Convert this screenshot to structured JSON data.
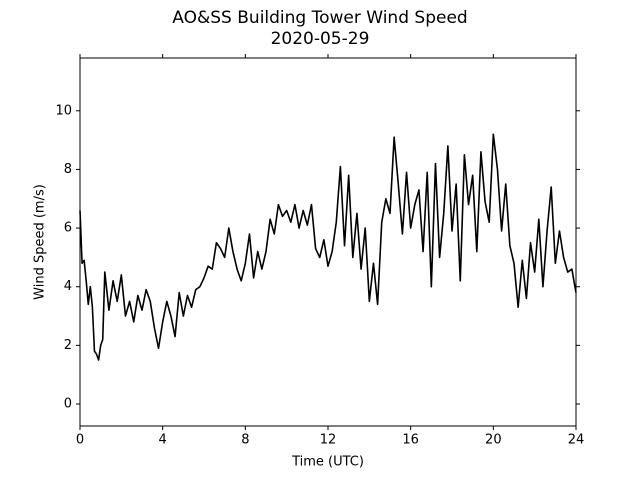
{
  "chart_data": {
    "type": "line",
    "title": "AO&SS Building Tower Wind Speed",
    "subtitle": "2020-05-29",
    "xlabel": "Time (UTC)",
    "ylabel": "Wind Speed (m/s)",
    "xlim": [
      0,
      24
    ],
    "xticks": [
      0,
      4,
      8,
      12,
      16,
      20,
      24
    ],
    "ylim": [
      -0.75,
      11.8
    ],
    "yticks": [
      0,
      2,
      4,
      6,
      8,
      10
    ],
    "grid": false,
    "series": [
      {
        "color": "#000000",
        "x": [
          0,
          0.1,
          0.2,
          0.3,
          0.4,
          0.5,
          0.6,
          0.7,
          0.8,
          0.9,
          1.0,
          1.1,
          1.2,
          1.4,
          1.6,
          1.8,
          2.0,
          2.2,
          2.4,
          2.6,
          2.8,
          3.0,
          3.2,
          3.4,
          3.6,
          3.8,
          4.0,
          4.2,
          4.4,
          4.6,
          4.8,
          5.0,
          5.2,
          5.4,
          5.6,
          5.8,
          6.0,
          6.2,
          6.4,
          6.6,
          6.8,
          7.0,
          7.2,
          7.4,
          7.6,
          7.8,
          8.0,
          8.2,
          8.4,
          8.6,
          8.8,
          9.0,
          9.2,
          9.4,
          9.6,
          9.8,
          10.0,
          10.2,
          10.4,
          10.6,
          10.8,
          11.0,
          11.2,
          11.4,
          11.6,
          11.8,
          12.0,
          12.2,
          12.4,
          12.6,
          12.8,
          13.0,
          13.2,
          13.4,
          13.6,
          13.8,
          14.0,
          14.2,
          14.4,
          14.6,
          14.8,
          15.0,
          15.2,
          15.4,
          15.6,
          15.8,
          16.0,
          16.2,
          16.4,
          16.6,
          16.8,
          17.0,
          17.2,
          17.4,
          17.6,
          17.8,
          18.0,
          18.2,
          18.4,
          18.6,
          18.8,
          19.0,
          19.2,
          19.4,
          19.6,
          19.8,
          20.0,
          20.2,
          20.4,
          20.6,
          20.8,
          21.0,
          21.2,
          21.4,
          21.6,
          21.8,
          22.0,
          22.2,
          22.4,
          22.6,
          22.8,
          23.0,
          23.2,
          23.4,
          23.6,
          23.8,
          24.0
        ],
        "values": [
          6.6,
          4.8,
          4.9,
          4.2,
          3.4,
          4.0,
          3.3,
          1.8,
          1.7,
          1.5,
          2.0,
          2.2,
          4.5,
          3.2,
          4.2,
          3.5,
          4.4,
          3.0,
          3.5,
          2.8,
          3.7,
          3.2,
          3.9,
          3.5,
          2.6,
          1.9,
          2.8,
          3.5,
          3.0,
          2.3,
          3.8,
          3.0,
          3.7,
          3.3,
          3.9,
          4.0,
          4.3,
          4.7,
          4.6,
          5.5,
          5.3,
          5.0,
          6.0,
          5.2,
          4.6,
          4.2,
          4.8,
          5.8,
          4.3,
          5.2,
          4.6,
          5.2,
          6.3,
          5.8,
          6.8,
          6.4,
          6.6,
          6.2,
          6.8,
          6.0,
          6.6,
          6.1,
          6.8,
          5.3,
          5.0,
          5.6,
          4.7,
          5.2,
          6.2,
          8.1,
          5.4,
          7.8,
          5.0,
          6.5,
          4.6,
          6.0,
          3.5,
          4.8,
          3.4,
          6.2,
          7.0,
          6.5,
          9.1,
          7.5,
          5.8,
          7.9,
          6.0,
          6.8,
          7.3,
          5.2,
          7.9,
          4.0,
          8.2,
          5.0,
          6.5,
          8.8,
          5.9,
          7.5,
          4.2,
          8.5,
          6.8,
          7.8,
          5.2,
          8.6,
          6.9,
          6.2,
          9.2,
          8.0,
          5.9,
          7.5,
          5.4,
          4.8,
          3.3,
          4.9,
          3.6,
          5.5,
          4.5,
          6.3,
          4.0,
          5.9,
          7.4,
          4.8,
          5.9,
          5.0,
          4.5,
          4.6,
          3.8
        ]
      }
    ]
  }
}
